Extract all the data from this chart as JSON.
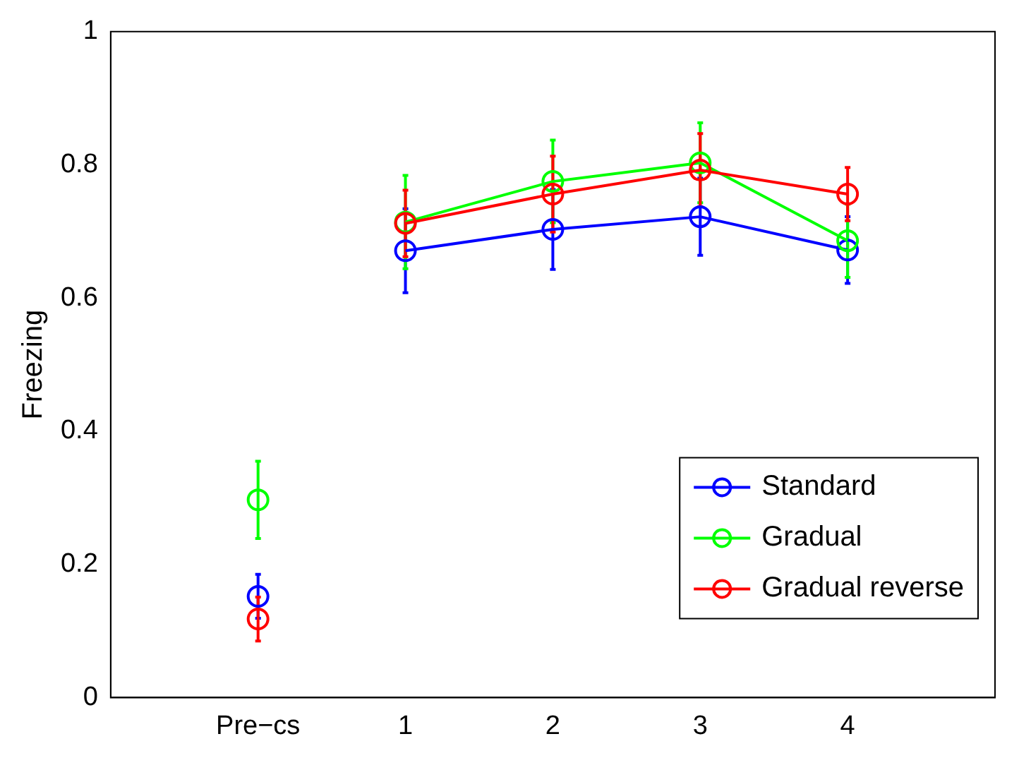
{
  "chart_data": {
    "type": "line",
    "ylabel": "Freezing",
    "xlim": [
      -1,
      5
    ],
    "xticks": [
      {
        "value": 0,
        "label": "Pre−cs"
      },
      1,
      2,
      3,
      4
    ],
    "ylim": [
      0,
      1
    ],
    "yticks": [
      0,
      0.2,
      0.4,
      0.6,
      0.8,
      1
    ],
    "grid": false,
    "legend": "bottom right",
    "marker": "circle",
    "line_style": "solid",
    "series": [
      {
        "name": "Standard",
        "color": "#0000ff",
        "x": [
          1,
          2,
          3,
          4
        ],
        "values": [
          0.671,
          0.703,
          0.722,
          0.672
        ],
        "errors": [
          0.063,
          0.06,
          0.058,
          0.05
        ]
      },
      {
        "name": "Gradual",
        "color": "#00ff00",
        "x": [
          1,
          2,
          3,
          4
        ],
        "values": [
          0.714,
          0.775,
          0.803,
          0.686
        ],
        "errors": [
          0.07,
          0.062,
          0.06,
          0.055
        ]
      },
      {
        "name": "Gradual reverse",
        "color": "#ff0000",
        "x": [
          1,
          2,
          3,
          4
        ],
        "values": [
          0.712,
          0.756,
          0.792,
          0.756
        ],
        "errors": [
          0.05,
          0.057,
          0.055,
          0.04
        ]
      },
      {
        "type": "scatter",
        "color": "#0000ff",
        "x": [
          0
        ],
        "values": [
          0.152
        ],
        "errors": [
          0.033
        ]
      },
      {
        "type": "scatter",
        "color": "#00ff00",
        "x": [
          0
        ],
        "values": [
          0.297
        ],
        "errors": [
          0.058
        ]
      },
      {
        "type": "scatter",
        "color": "#ff0000",
        "x": [
          0
        ],
        "values": [
          0.118
        ],
        "errors": [
          0.033
        ]
      }
    ]
  }
}
